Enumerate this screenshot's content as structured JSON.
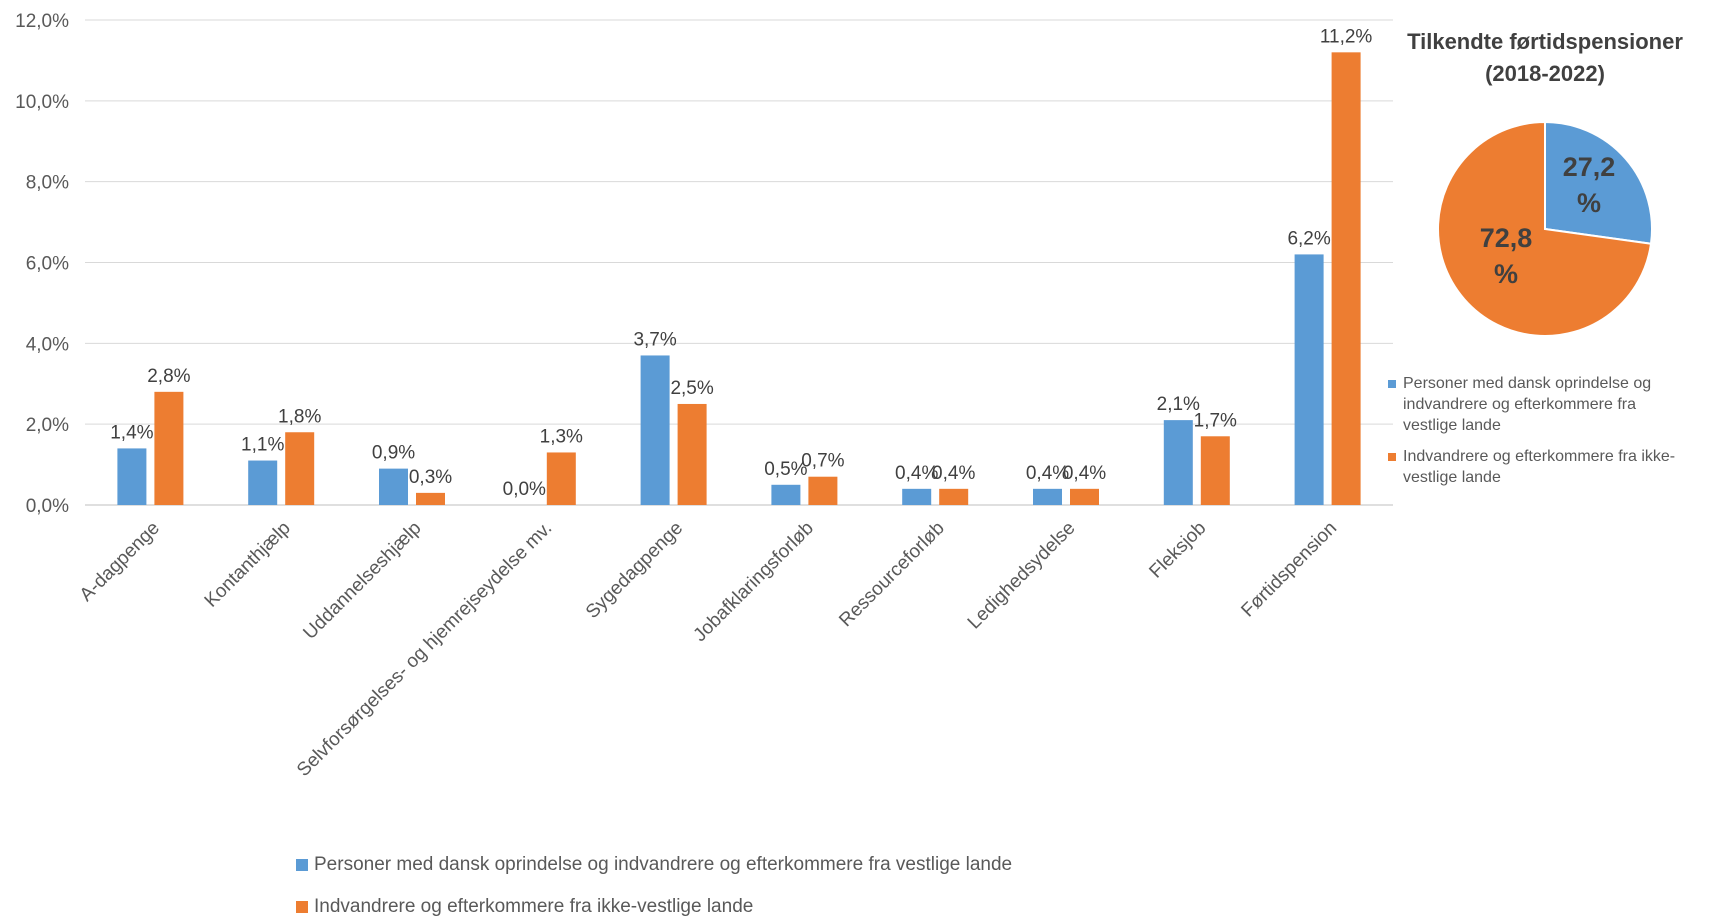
{
  "chart_data": [
    {
      "type": "bar",
      "title": "",
      "xlabel": "",
      "ylabel": "",
      "ylim": [
        0,
        12
      ],
      "yticks": [
        "0,0%",
        "2,0%",
        "4,0%",
        "6,0%",
        "8,0%",
        "10,0%",
        "12,0%"
      ],
      "grid": true,
      "legend_position": "bottom",
      "categories": [
        "A-dagpenge",
        "Kontanthjælp",
        "Uddannelseshjælp",
        "Selvforsørgelses- og hjemrejseydelse mv.",
        "Sygedagpenge",
        "Jobafklaringsforløb",
        "Ressourceforløb",
        "Ledighedsydelse",
        "Fleksjob",
        "Førtidspension"
      ],
      "series": [
        {
          "name": "Personer med dansk oprindelse og indvandrere og efterkommere fra vestlige lande",
          "color": "#5B9BD5",
          "values": [
            1.4,
            1.1,
            0.9,
            0.0,
            3.7,
            0.5,
            0.4,
            0.4,
            2.1,
            6.2
          ],
          "labels": [
            "1,4%",
            "1,1%",
            "0,9%",
            "0,0%",
            "3,7%",
            "0,5%",
            "0,4%",
            "0,4%",
            "2,1%",
            "6,2%"
          ]
        },
        {
          "name": "Indvandrere og efterkommere fra ikke-vestlige lande",
          "color": "#ED7D31",
          "values": [
            2.8,
            1.8,
            0.3,
            1.3,
            2.5,
            0.7,
            0.4,
            0.4,
            1.7,
            11.2
          ],
          "labels": [
            "2,8%",
            "1,8%",
            "0,3%",
            "1,3%",
            "2,5%",
            "0,7%",
            "0,4%",
            "0,4%",
            "1,7%",
            "11,2%"
          ]
        }
      ]
    },
    {
      "type": "pie",
      "title": "Tilkendte førtidspensioner (2018-2022)",
      "title_lines": [
        "Tilkendte førtidspensioner",
        "(2018-2022)"
      ],
      "legend_position": "bottom",
      "slices": [
        {
          "name": "Personer med dansk oprindelse og indvandrere og efterkommere fra vestlige lande",
          "name_lines": [
            "Personer med dansk oprindelse og",
            "indvandrere og efterkommere fra",
            "vestlige lande"
          ],
          "value": 27.2,
          "label_lines": [
            "27,2",
            "%"
          ],
          "color": "#5B9BD5"
        },
        {
          "name": "Indvandrere og efterkommere fra ikke-vestlige lande",
          "name_lines": [
            "Indvandrere og efterkommere fra ikke-",
            "vestlige lande"
          ],
          "value": 72.8,
          "label_lines": [
            "72,8",
            "%"
          ],
          "color": "#ED7D31"
        }
      ]
    }
  ]
}
